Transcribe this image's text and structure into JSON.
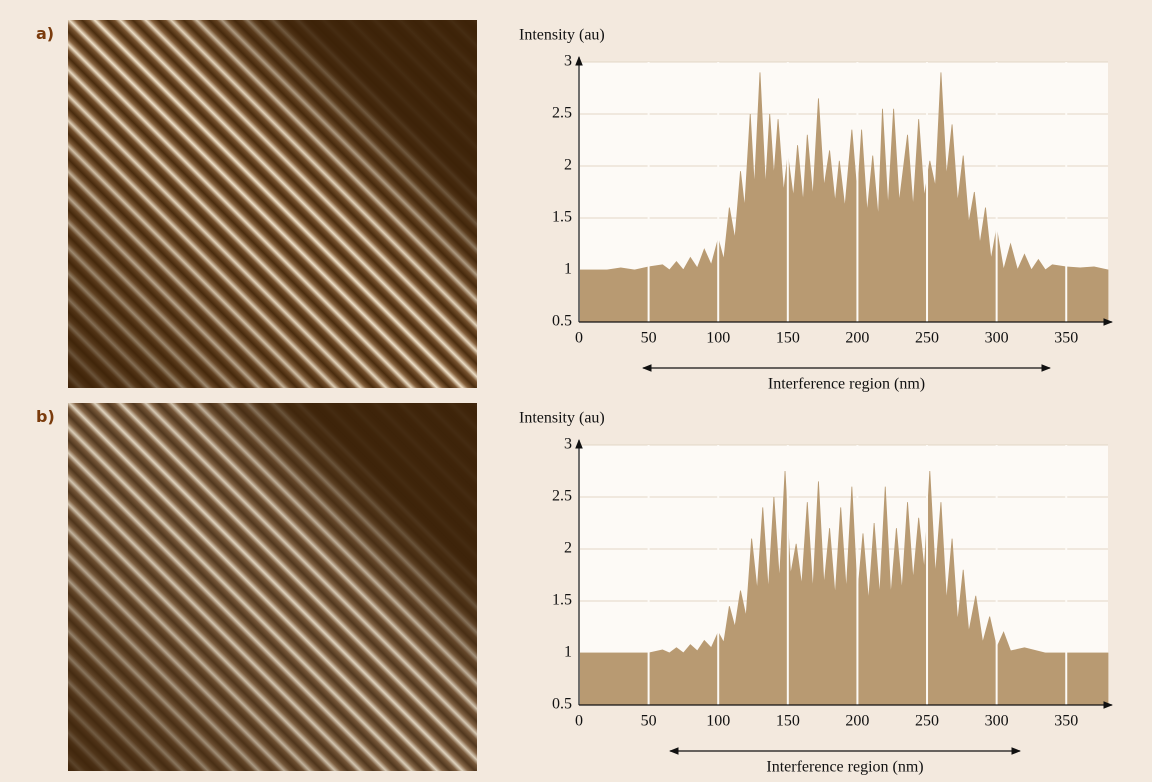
{
  "panels": [
    "a)",
    "b)"
  ],
  "chart_data": [
    {
      "type": "area",
      "y_label": "Intensity (au)",
      "annotation": "Interference region (nm)",
      "color": "#b89a72",
      "xlim": [
        0,
        380
      ],
      "ylim": [
        0.5,
        3
      ],
      "xticks": [
        0,
        50,
        100,
        150,
        200,
        250,
        300,
        350
      ],
      "yticks": [
        0.5,
        1,
        1.5,
        2,
        2.5,
        3
      ],
      "grid": true,
      "x": [
        0,
        10,
        20,
        30,
        40,
        50,
        60,
        65,
        70,
        75,
        80,
        85,
        90,
        95,
        100,
        104,
        108,
        112,
        116,
        119,
        123,
        126,
        130,
        134,
        137,
        140,
        143,
        147,
        150,
        154,
        157,
        161,
        164,
        168,
        172,
        176,
        180,
        184,
        187,
        191,
        196,
        200,
        203,
        207,
        211,
        215,
        218,
        222,
        226,
        230,
        236,
        240,
        244,
        248,
        252,
        256,
        260,
        264,
        268,
        272,
        276,
        280,
        284,
        288,
        292,
        296,
        300,
        305,
        310,
        315,
        320,
        325,
        330,
        335,
        340,
        350,
        360,
        370,
        380
      ],
      "values": [
        1.0,
        1.0,
        1.0,
        1.02,
        1.0,
        1.03,
        1.05,
        1.0,
        1.08,
        1.0,
        1.12,
        1.02,
        1.2,
        1.05,
        1.3,
        1.1,
        1.6,
        1.3,
        1.95,
        1.6,
        2.5,
        1.8,
        2.9,
        1.8,
        2.5,
        1.9,
        2.45,
        1.75,
        2.1,
        1.7,
        2.2,
        1.65,
        2.3,
        1.7,
        2.65,
        1.8,
        2.15,
        1.65,
        2.05,
        1.6,
        2.35,
        1.7,
        2.35,
        1.55,
        2.1,
        1.5,
        2.55,
        1.6,
        2.55,
        1.65,
        2.3,
        1.6,
        2.45,
        1.7,
        2.05,
        1.8,
        2.9,
        1.9,
        2.4,
        1.65,
        2.1,
        1.45,
        1.75,
        1.25,
        1.6,
        1.1,
        1.4,
        1.0,
        1.25,
        1.0,
        1.15,
        1.0,
        1.1,
        1.0,
        1.05,
        1.03,
        1.02,
        1.03,
        1.0
      ]
    },
    {
      "type": "area",
      "y_label": "Intensity (au)",
      "annotation": "Interference region (nm)",
      "color": "#b89a72",
      "xlim": [
        0,
        380
      ],
      "ylim": [
        0.5,
        3
      ],
      "xticks": [
        0,
        50,
        100,
        150,
        200,
        250,
        300,
        350
      ],
      "yticks": [
        0.5,
        1,
        1.5,
        2,
        2.5,
        3
      ],
      "grid": true,
      "x": [
        0,
        10,
        20,
        30,
        40,
        50,
        60,
        65,
        70,
        75,
        80,
        85,
        90,
        95,
        100,
        104,
        108,
        112,
        116,
        120,
        124,
        128,
        132,
        136,
        140,
        144,
        148,
        152,
        156,
        160,
        164,
        168,
        172,
        176,
        180,
        184,
        188,
        192,
        196,
        200,
        204,
        208,
        212,
        216,
        220,
        224,
        228,
        232,
        236,
        240,
        244,
        248,
        252,
        256,
        260,
        264,
        268,
        272,
        276,
        280,
        285,
        290,
        295,
        300,
        305,
        310,
        320,
        335,
        340,
        360,
        380
      ],
      "values": [
        1.0,
        1.0,
        1.0,
        1.0,
        1.0,
        1.0,
        1.03,
        1.0,
        1.05,
        1.0,
        1.08,
        1.02,
        1.12,
        1.05,
        1.2,
        1.1,
        1.45,
        1.25,
        1.6,
        1.35,
        2.1,
        1.6,
        2.4,
        1.6,
        2.5,
        1.7,
        2.75,
        1.75,
        2.05,
        1.65,
        2.45,
        1.6,
        2.65,
        1.65,
        2.2,
        1.55,
        2.4,
        1.6,
        2.6,
        1.55,
        2.15,
        1.5,
        2.25,
        1.55,
        2.6,
        1.55,
        2.2,
        1.6,
        2.45,
        1.7,
        2.3,
        1.8,
        2.75,
        1.75,
        2.45,
        1.5,
        2.1,
        1.3,
        1.8,
        1.2,
        1.55,
        1.1,
        1.35,
        1.05,
        1.2,
        1.02,
        1.05,
        1.0,
        1.0,
        1.0,
        1.0
      ]
    }
  ]
}
